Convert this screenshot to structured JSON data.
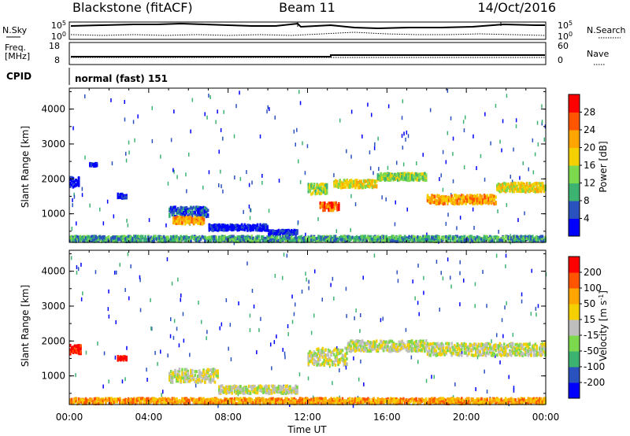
{
  "header": {
    "station": "Blackstone (fitACF)",
    "beam": "Beam 11",
    "date": "14/Oct/2016"
  },
  "sky_panel": {
    "left_label": "N.Sky",
    "right_label": "N.Search",
    "left_ticks": [
      "10^5",
      "10^0"
    ],
    "right_ticks": [
      "10^5",
      "10^0"
    ]
  },
  "freq_panel": {
    "left_label_1": "Freq.",
    "left_label_2": "[MHz]",
    "right_label": "Nave",
    "left_ticks": [
      "18",
      "8"
    ],
    "right_ticks": [
      "60",
      "0"
    ]
  },
  "cpid": {
    "label": "CPID",
    "value": "normal (fast) 151"
  },
  "chart_data": [
    {
      "type": "heatmap",
      "title": "",
      "variable": "Power",
      "ylabel": "Slant Range [km]",
      "xlabel": "Time UT",
      "ylim": [
        180,
        4600
      ],
      "y_ticks": [
        "1000",
        "2000",
        "3000",
        "4000"
      ],
      "x_ticks": [
        "00:00",
        "04:00",
        "08:00",
        "12:00",
        "16:00",
        "20:00",
        "00:00"
      ],
      "colorbar": {
        "label": "Power [dB]",
        "ticks": [
          "4",
          "8",
          "12",
          "16",
          "20",
          "24",
          "28"
        ],
        "colors": [
          "#0000ff",
          "#2a52be",
          "#3cb371",
          "#7cd84c",
          "#f5d000",
          "#ffa500",
          "#ff5500",
          "#ff0000"
        ]
      },
      "bands": [
        {
          "t_start": 0.0,
          "t_end": 0.5,
          "r_center": 1950,
          "r_width": 280,
          "level": 0
        },
        {
          "t_start": 1.0,
          "t_end": 1.4,
          "r_center": 2450,
          "r_width": 80,
          "level": 0
        },
        {
          "t_start": 2.4,
          "t_end": 2.9,
          "r_center": 1550,
          "r_width": 120,
          "level": 0
        },
        {
          "t_start": 5.0,
          "t_end": 7.0,
          "r_center": 1100,
          "r_width": 280,
          "level": 1
        },
        {
          "t_start": 5.2,
          "t_end": 6.8,
          "r_center": 850,
          "r_width": 200,
          "level": 5
        },
        {
          "t_start": 7.0,
          "t_end": 10.0,
          "r_center": 650,
          "r_width": 160,
          "level": 0
        },
        {
          "t_start": 10.0,
          "t_end": 11.5,
          "r_center": 500,
          "r_width": 140,
          "level": 0
        },
        {
          "t_start": 12.0,
          "t_end": 13.0,
          "r_center": 1750,
          "r_width": 300,
          "level": 3
        },
        {
          "t_start": 12.6,
          "t_end": 13.6,
          "r_center": 1250,
          "r_width": 220,
          "level": 6
        },
        {
          "t_start": 13.3,
          "t_end": 15.5,
          "r_center": 1900,
          "r_width": 220,
          "level": 4
        },
        {
          "t_start": 15.5,
          "t_end": 18.0,
          "r_center": 2100,
          "r_width": 200,
          "level": 3
        },
        {
          "t_start": 18.0,
          "t_end": 21.5,
          "r_center": 1450,
          "r_width": 250,
          "level": 5
        },
        {
          "t_start": 21.5,
          "t_end": 24.0,
          "r_center": 1800,
          "r_width": 260,
          "level": 4
        },
        {
          "t_start": 0.0,
          "t_end": 24.0,
          "r_center": 300,
          "r_width": 200,
          "level": 2
        }
      ]
    },
    {
      "type": "heatmap",
      "title": "",
      "variable": "Velocity",
      "ylabel": "Slant Range [km]",
      "xlabel": "Time UT",
      "ylim": [
        180,
        4600
      ],
      "y_ticks": [
        "1000",
        "2000",
        "3000",
        "4000"
      ],
      "x_ticks": [
        "00:00",
        "04:00",
        "08:00",
        "12:00",
        "16:00",
        "20:00",
        "00:00"
      ],
      "colorbar": {
        "label": "Velocity [m s^-1]",
        "ticks": [
          "200",
          "100",
          "50",
          "15",
          "-15",
          "-50",
          "-100",
          "-200"
        ],
        "colors": [
          "#0000ff",
          "#2a52be",
          "#3cb371",
          "#7cd84c",
          "#bebebe",
          "#f5d000",
          "#ffa500",
          "#ff5500",
          "#ff0000"
        ]
      },
      "bands": [
        {
          "t_start": 0.0,
          "t_end": 0.6,
          "r_center": 1800,
          "r_width": 250,
          "level": 8
        },
        {
          "t_start": 2.4,
          "t_end": 2.9,
          "r_center": 1550,
          "r_width": 120,
          "level": 8
        },
        {
          "t_start": 5.0,
          "t_end": 7.5,
          "r_center": 1050,
          "r_width": 380,
          "level": 4
        },
        {
          "t_start": 7.5,
          "t_end": 11.5,
          "r_center": 650,
          "r_width": 220,
          "level": 4
        },
        {
          "t_start": 12.0,
          "t_end": 14.0,
          "r_center": 1600,
          "r_width": 500,
          "level": 4
        },
        {
          "t_start": 14.0,
          "t_end": 18.0,
          "r_center": 1900,
          "r_width": 300,
          "level": 4
        },
        {
          "t_start": 18.0,
          "t_end": 24.0,
          "r_center": 1800,
          "r_width": 350,
          "level": 4
        },
        {
          "t_start": 0.0,
          "t_end": 24.0,
          "r_center": 300,
          "r_width": 200,
          "level": 6
        }
      ]
    }
  ]
}
